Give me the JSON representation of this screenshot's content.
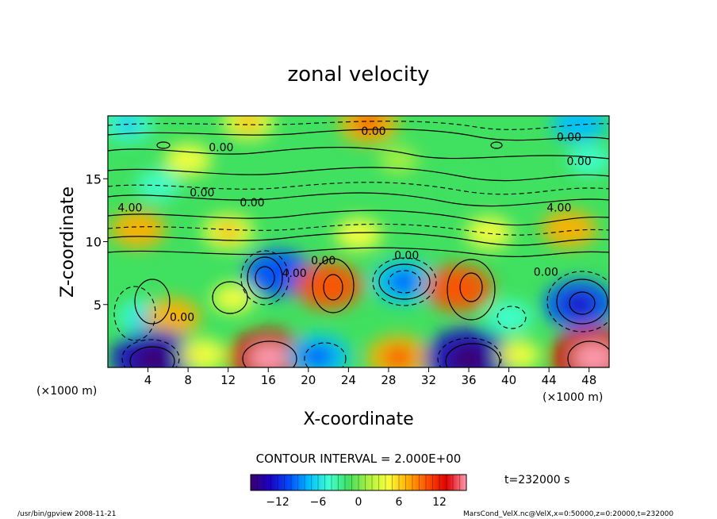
{
  "chart_data": {
    "type": "heatmap",
    "title": "zonal velocity",
    "xlabel": "X-coordinate",
    "ylabel": "Z-coordinate",
    "x_unit": "(×1000 m)",
    "xlim": [
      0,
      50
    ],
    "ylim": [
      0,
      20
    ],
    "x_ticks": [
      4,
      8,
      12,
      16,
      20,
      24,
      28,
      32,
      36,
      40,
      44,
      48
    ],
    "y_ticks": [
      5,
      10,
      15
    ],
    "contour_interval_text": "CONTOUR INTERVAL = 2.000E+00",
    "time_text": "t=232000 s",
    "colorbar": {
      "min": -16,
      "max": 16,
      "ticks": [
        -12,
        -6,
        0,
        6,
        12
      ]
    },
    "colormap": [
      "#3b006b",
      "#1a00c8",
      "#0050ff",
      "#00c0ff",
      "#40ffd0",
      "#40e060",
      "#aaf040",
      "#f8ff3c",
      "#ffb000",
      "#ff5000",
      "#e00000",
      "#ff9ab0"
    ],
    "contour_labels": [
      {
        "x": 26.5,
        "z": 18.5,
        "text": "0.00"
      },
      {
        "x": 11.3,
        "z": 17.2,
        "text": "0.00"
      },
      {
        "x": 46.0,
        "z": 18.0,
        "text": "0.00"
      },
      {
        "x": 47.0,
        "z": 16.1,
        "text": "0.00"
      },
      {
        "x": 9.4,
        "z": 13.6,
        "text": "0.00"
      },
      {
        "x": 14.4,
        "z": 12.8,
        "text": "0.00"
      },
      {
        "x": 2.2,
        "z": 12.4,
        "text": "4.00"
      },
      {
        "x": 45.0,
        "z": 12.4,
        "text": "4.00"
      },
      {
        "x": 18.6,
        "z": 7.2,
        "text": "4.00"
      },
      {
        "x": 21.5,
        "z": 8.2,
        "text": "0.00"
      },
      {
        "x": 29.8,
        "z": 8.6,
        "text": "0.00"
      },
      {
        "x": 43.7,
        "z": 7.3,
        "text": "0.00"
      },
      {
        "x": 7.4,
        "z": 3.7,
        "text": "0.00"
      }
    ],
    "features": [
      {
        "x": 17.0,
        "z": 7.5,
        "value": -9
      },
      {
        "x": 22.0,
        "z": 6.5,
        "value": 9
      },
      {
        "x": 29.5,
        "z": 6.8,
        "value": -8
      },
      {
        "x": 35.0,
        "z": 6.3,
        "value": 9
      },
      {
        "x": 47.0,
        "z": 5.0,
        "value": -10
      },
      {
        "x": 3.5,
        "z": 4.0,
        "value": -5
      },
      {
        "x": 6.5,
        "z": 4.0,
        "value": 6
      },
      {
        "x": 12.5,
        "z": 5.5,
        "value": 3
      },
      {
        "x": 40.0,
        "z": 4.0,
        "value": -4
      },
      {
        "x": 4.5,
        "z": 0.7,
        "value": -13
      },
      {
        "x": 16.0,
        "z": 0.8,
        "value": 12
      },
      {
        "x": 21.0,
        "z": 0.9,
        "value": -8
      },
      {
        "x": 29.0,
        "z": 0.8,
        "value": 8
      },
      {
        "x": 36.0,
        "z": 0.7,
        "value": -14
      },
      {
        "x": 48.5,
        "z": 0.8,
        "value": 14
      },
      {
        "x": 41.0,
        "z": 1.0,
        "value": 3
      },
      {
        "x": 9.5,
        "z": 1.0,
        "value": 4
      },
      {
        "x": 3.0,
        "z": 11.0,
        "value": 6
      },
      {
        "x": 12.0,
        "z": 10.8,
        "value": 5
      },
      {
        "x": 46.0,
        "z": 11.0,
        "value": 6
      },
      {
        "x": 25.0,
        "z": 10.6,
        "value": 4
      },
      {
        "x": 38.0,
        "z": 10.7,
        "value": 4
      },
      {
        "x": 26.0,
        "z": 19.4,
        "value": 7
      },
      {
        "x": 14.0,
        "z": 19.5,
        "value": 5
      },
      {
        "x": 8.0,
        "z": 16.5,
        "value": 4
      },
      {
        "x": 5.0,
        "z": 14.5,
        "value": -3
      },
      {
        "x": 48.0,
        "z": 16.5,
        "value": -3
      },
      {
        "x": 2.0,
        "z": 19.3,
        "value": -5
      },
      {
        "x": 47.0,
        "z": 19.4,
        "value": -6
      },
      {
        "x": 36.0,
        "z": 14.5,
        "value": -2
      },
      {
        "x": 29.0,
        "z": 16.5,
        "value": 2
      }
    ]
  },
  "footer": {
    "program": "/usr/bin/gpview   2008-11-21",
    "source": "MarsCond_VelX.nc@VelX,x=0:50000,z=0:20000,t=232000"
  }
}
